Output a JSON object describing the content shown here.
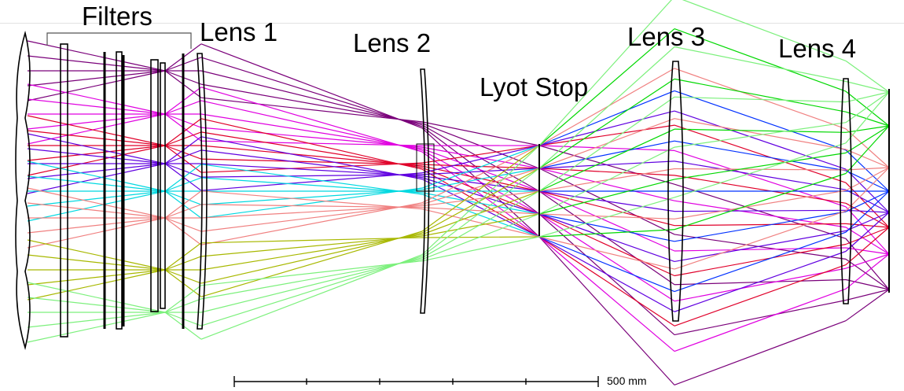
{
  "labels": {
    "filters": "Filters",
    "lens1": "Lens 1",
    "lens2": "Lens 2",
    "lyot_stop": "Lyot Stop",
    "lens3": "Lens 3",
    "lens4": "Lens 4"
  },
  "scale_bar": {
    "label": "500 mm"
  },
  "ray_colors": [
    "#7a007a",
    "#e000e0",
    "#e0002a",
    "#6000e0",
    "#00d8e0",
    "#f08080",
    "#a8b800",
    "#7cf07c",
    "#00d800",
    "#0030ff"
  ]
}
